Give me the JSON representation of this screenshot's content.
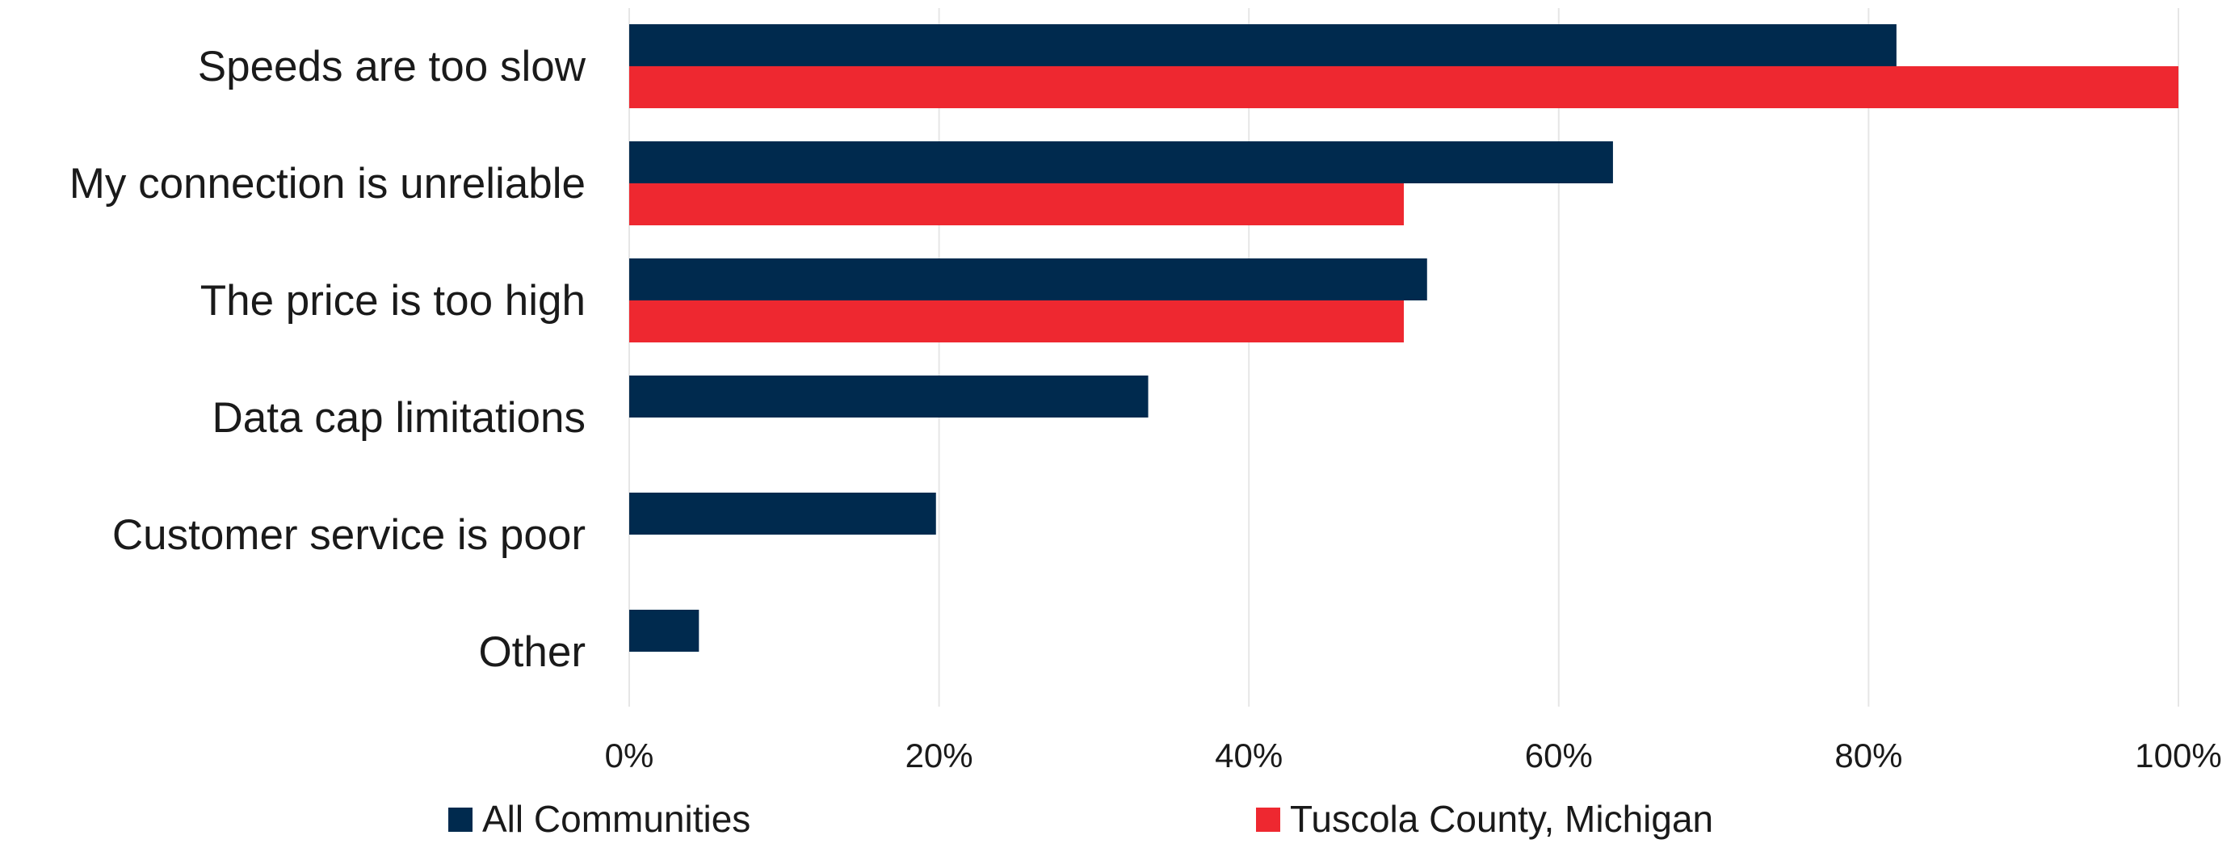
{
  "chart_data": {
    "type": "bar",
    "orientation": "horizontal",
    "categories": [
      "Speeds are too slow",
      "My connection is unreliable",
      "The price is too high",
      "Data cap limitations",
      "Customer service is poor",
      "Other"
    ],
    "series": [
      {
        "name": "All Communities",
        "color": "#002a4e",
        "values": [
          0.818,
          0.635,
          0.515,
          0.335,
          0.198,
          0.045
        ]
      },
      {
        "name": "Tuscola County, Michigan",
        "color": "#ee2830",
        "values": [
          1.0,
          0.5,
          0.5,
          0,
          0,
          0
        ]
      }
    ],
    "xlim": [
      0,
      1
    ],
    "x_ticks": [
      0,
      0.2,
      0.4,
      0.6,
      0.8,
      1.0
    ],
    "x_tick_labels": [
      "0%",
      "20%",
      "40%",
      "60%",
      "80%",
      "100%"
    ],
    "grid": "vertical",
    "legend_position": "bottom",
    "title": "",
    "xlabel": "",
    "ylabel": ""
  }
}
